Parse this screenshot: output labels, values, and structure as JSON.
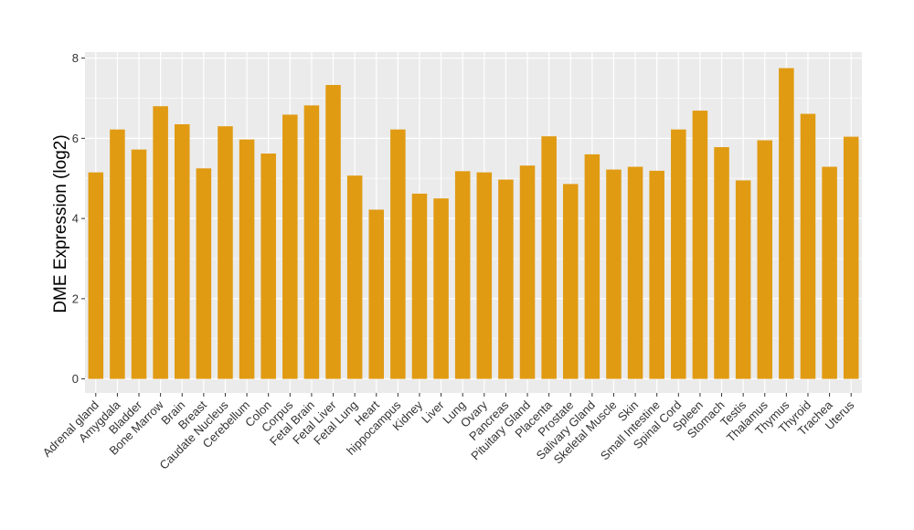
{
  "chart_data": {
    "type": "bar",
    "title": "",
    "xlabel": "",
    "ylabel": "DME Expression (log2)",
    "ylim": [
      -0.35,
      8.15
    ],
    "yticks": [
      0,
      2,
      4,
      6,
      8
    ],
    "grid": true,
    "legend": "none",
    "bar_color": "#E09B13",
    "panel_color": "#EBEBEB",
    "grid_color": "#FFFFFF",
    "categories": [
      "Adrenal gland",
      "Amygdala",
      "Bladder",
      "Bone Marrow",
      "Brain",
      "Breast",
      "Caudate Nucleus",
      "Cerebellum",
      "Colon",
      "Corpus",
      "Fetal Brain",
      "Fetal Liver",
      "Fetal Lung",
      "Heart",
      "hippocampus",
      "Kidney",
      "Liver",
      "Lung",
      "Ovary",
      "Pancreas",
      "Pituitary Gland",
      "Placenta",
      "Prostate",
      "Salivary Gland",
      "Skeletal Muscle",
      "Skin",
      "Small Intestine",
      "Spinal Cord",
      "Spleen",
      "Stomach",
      "Testis",
      "Thalamus",
      "Thymus",
      "Thyroid",
      "Trachea",
      "Uterus"
    ],
    "values": [
      5.15,
      6.22,
      5.72,
      6.8,
      6.35,
      5.25,
      6.3,
      5.97,
      5.62,
      6.59,
      6.82,
      7.33,
      5.07,
      4.22,
      6.22,
      4.62,
      4.5,
      5.18,
      5.15,
      4.97,
      5.32,
      6.05,
      4.86,
      5.6,
      5.22,
      5.29,
      5.19,
      6.22,
      6.69,
      5.78,
      4.95,
      5.95,
      7.75,
      6.61,
      5.29,
      6.04
    ]
  }
}
